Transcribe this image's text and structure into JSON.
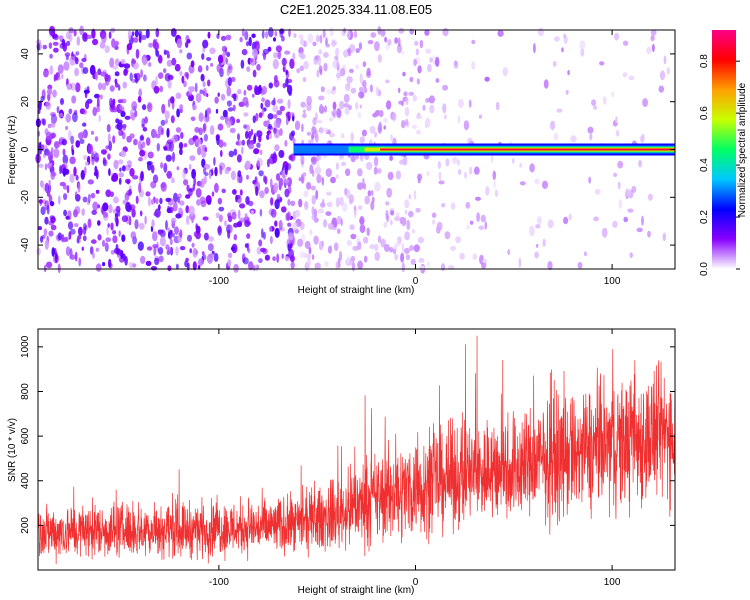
{
  "figure": {
    "title": "C2E1.2025.334.11.08.E05"
  },
  "chart_data": [
    {
      "type": "heatmap",
      "title": "",
      "xlabel": "Height of straight line (km)",
      "ylabel": "Frequency (Hz)",
      "xlim": [
        -192,
        132
      ],
      "ylim": [
        -50,
        50
      ],
      "x_ticks": [
        -100,
        0,
        100
      ],
      "x_tick_labels": [
        "-100",
        "0",
        "100"
      ],
      "y_ticks": [
        -40,
        -20,
        0,
        20,
        40
      ],
      "y_tick_labels": [
        "-40",
        "-20",
        "0",
        "20",
        "40"
      ],
      "colorbar": {
        "label": "Normalized spectral amplitude",
        "range": [
          0,
          0.92
        ],
        "ticks": [
          0.0,
          0.2,
          0.4,
          0.6,
          0.8
        ],
        "tick_labels": [
          "0.0",
          "0.2",
          "0.4",
          "0.6",
          "0.8"
        ],
        "colors": [
          "#ffffff",
          "#8800ff",
          "#0000ff",
          "#00c8ff",
          "#00ff64",
          "#c8ff00",
          "#ffa000",
          "#ff0000",
          "#ff0088"
        ]
      },
      "signal_line": {
        "frequency_hz": 0,
        "onset_km": -62,
        "peak_amplitude": 0.85
      },
      "noise": {
        "dense_region_km": [
          -192,
          -62
        ],
        "dense_amplitude": 0.15,
        "sparse_amplitude": 0.03
      },
      "grid": false,
      "legend": "right"
    },
    {
      "type": "line",
      "title": "",
      "xlabel": "Height of straight line (km)",
      "ylabel": "SNR (10 * v/v)",
      "xlim": [
        -192,
        132
      ],
      "ylim": [
        0,
        1080
      ],
      "x_ticks": [
        -100,
        0,
        100
      ],
      "x_tick_labels": [
        "-100",
        "0",
        "100"
      ],
      "y_ticks": [
        200,
        400,
        600,
        800,
        1000
      ],
      "y_tick_labels": [
        "200",
        "400",
        "600",
        "800",
        "1000"
      ],
      "series": [
        {
          "color": "#f03030",
          "trend_x": [
            -192,
            -150,
            -100,
            -60,
            -40,
            -20,
            0,
            20,
            60,
            100,
            132
          ],
          "trend_center": [
            170,
            180,
            185,
            200,
            250,
            320,
            370,
            420,
            480,
            560,
            620
          ],
          "trend_spread": [
            130,
            130,
            135,
            140,
            170,
            220,
            240,
            250,
            280,
            320,
            330
          ],
          "max": 1060,
          "min": 20
        }
      ],
      "grid": false,
      "legend": "none"
    }
  ]
}
